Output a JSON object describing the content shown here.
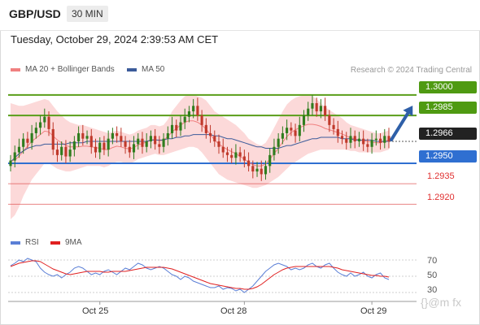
{
  "header": {
    "pair": "GBP/USD",
    "timeframe": "30 MIN",
    "datetime": "Tuesday, October 29, 2024 2:39:53 AM CET"
  },
  "legend": {
    "ma20_label": "MA 20 + Bollinger Bands",
    "ma50_label": "MA 50",
    "ma20_color": "#f08080",
    "ma50_color": "#3b5b9a",
    "copyright": "Research © 2024 Trading Central"
  },
  "rsi_legend": {
    "rsi_label": "RSI",
    "ma9_label": "9MA",
    "rsi_color": "#5b7fd6",
    "ma9_color": "#e02020"
  },
  "levels": {
    "r2": "1.3000",
    "r1": "1.2985",
    "current": "1.2966",
    "s1": "1.2950",
    "s2": "1.2935",
    "s3": "1.2920",
    "resistance_color": "#5a9e1a",
    "support_color": "#2f6fd1",
    "minor_support_color": "#e05050",
    "current_color": "#222222"
  },
  "rsi_axis": {
    "t70": "70",
    "t50": "50",
    "t30": "30"
  },
  "x_axis": {
    "labels": [
      "Oct 25",
      "Oct 28",
      "Oct 29"
    ]
  },
  "watermark": "{}@m fx",
  "chart_data": {
    "type": "candlestick",
    "ylim": [
      1.2903,
      1.3013
    ],
    "levels": [
      1.3,
      1.2985,
      1.2966,
      1.295,
      1.2935,
      1.292
    ],
    "closes": [
      1.2952,
      1.2958,
      1.2962,
      1.2968,
      1.2965,
      1.2972,
      1.2976,
      1.298,
      1.2984,
      1.2975,
      1.296,
      1.2956,
      1.2962,
      1.2955,
      1.296,
      1.2966,
      1.2972,
      1.2968,
      1.297,
      1.2962,
      1.2958,
      1.2965,
      1.296,
      1.2968,
      1.2972,
      1.297,
      1.2966,
      1.2962,
      1.2958,
      1.2964,
      1.2968,
      1.2962,
      1.2966,
      1.297,
      1.2964,
      1.2962,
      1.2968,
      1.2972,
      1.2978,
      1.2974,
      1.298,
      1.2984,
      1.2988,
      1.2992,
      1.2985,
      1.2978,
      1.2972,
      1.297,
      1.2966,
      1.2962,
      1.2958,
      1.2956,
      1.2954,
      1.2958,
      1.2955,
      1.2952,
      1.2948,
      1.2944,
      1.2946,
      1.2942,
      1.2948,
      1.2956,
      1.2962,
      1.2968,
      1.2972,
      1.2976,
      1.2974,
      1.297,
      1.2978,
      1.2985,
      1.299,
      1.2994,
      1.2988,
      1.2992,
      1.2985,
      1.2978,
      1.2975,
      1.297,
      1.2968,
      1.2965,
      1.297,
      1.2966,
      1.2968,
      1.2964,
      1.2962,
      1.2967,
      1.2968,
      1.2965,
      1.297,
      1.2966
    ],
    "bb_upper": [
      1.2994,
      1.2993,
      1.2992,
      1.2992,
      1.2993,
      1.2994,
      1.2995,
      1.2996,
      1.2997,
      1.2996,
      1.2992,
      1.2988,
      1.2985,
      1.2982,
      1.298,
      1.2979,
      1.2978,
      1.2978,
      1.2977,
      1.2976,
      1.2975,
      1.2974,
      1.2973,
      1.2972,
      1.2973,
      1.2974,
      1.2973,
      1.2972,
      1.2971,
      1.2972,
      1.2974,
      1.2975,
      1.2976,
      1.2978,
      1.2978,
      1.2977,
      1.2978,
      1.2982,
      1.2988,
      1.2992,
      1.2996,
      1.2999,
      1.3,
      1.3,
      1.2999,
      1.2998,
      1.2996,
      1.2992,
      1.2988,
      1.2986,
      1.2984,
      1.2982,
      1.298,
      1.2978,
      1.2975,
      1.2972,
      1.2968,
      1.2966,
      1.2964,
      1.2963,
      1.2965,
      1.297,
      1.2976,
      1.2982,
      1.2988,
      1.2993,
      1.2996,
      1.2998,
      1.2999,
      1.3,
      1.3,
      1.2999,
      1.2997,
      1.2994,
      1.2991,
      1.2989,
      1.2987,
      1.2985,
      1.2983,
      1.298,
      1.2978,
      1.2977,
      1.2976,
      1.2975,
      1.2974,
      1.2973,
      1.2972,
      1.2972,
      1.2973,
      1.2974
    ],
    "bb_lower": [
      1.2909,
      1.2912,
      1.2918,
      1.2926,
      1.2932,
      1.2938,
      1.2942,
      1.2946,
      1.295,
      1.295,
      1.2948,
      1.2946,
      1.2945,
      1.2944,
      1.2944,
      1.2945,
      1.2946,
      1.2947,
      1.2948,
      1.2948,
      1.2948,
      1.2948,
      1.2947,
      1.2948,
      1.295,
      1.2951,
      1.2951,
      1.295,
      1.295,
      1.2951,
      1.2953,
      1.2954,
      1.2955,
      1.2956,
      1.2957,
      1.2956,
      1.2956,
      1.2957,
      1.2958,
      1.2959,
      1.296,
      1.2961,
      1.2962,
      1.2962,
      1.2961,
      1.2958,
      1.2954,
      1.295,
      1.2946,
      1.2942,
      1.294,
      1.2938,
      1.2937,
      1.2936,
      1.2935,
      1.2934,
      1.2933,
      1.2932,
      1.2932,
      1.2933,
      1.2934,
      1.2936,
      1.2938,
      1.294,
      1.2943,
      1.2946,
      1.2949,
      1.2951,
      1.2953,
      1.2955,
      1.2957,
      1.2958,
      1.2959,
      1.296,
      1.296,
      1.296,
      1.296,
      1.296,
      1.296,
      1.296,
      1.2959,
      1.2959,
      1.2958,
      1.2958,
      1.2958,
      1.2958,
      1.2958,
      1.2958,
      1.2959,
      1.296
    ],
    "ma50": [
      1.2951,
      1.2954,
      1.2957,
      1.2959,
      1.2961,
      1.2962,
      1.2963,
      1.2963,
      1.2964,
      1.2964,
      1.2964,
      1.2964,
      1.2964,
      1.2964,
      1.2965,
      1.2965,
      1.2965,
      1.2965,
      1.2966,
      1.2966,
      1.2966,
      1.2966,
      1.2966,
      1.2966,
      1.2966,
      1.2966,
      1.2966,
      1.2966,
      1.2966,
      1.2966,
      1.2966,
      1.2966,
      1.2966,
      1.2967,
      1.2967,
      1.2967,
      1.2967,
      1.2968,
      1.2968,
      1.2969,
      1.2969,
      1.297,
      1.297,
      1.2971,
      1.2971,
      1.2971,
      1.2971,
      1.2971,
      1.297,
      1.297,
      1.2969,
      1.2968,
      1.2968,
      1.2967,
      1.2966,
      1.2965,
      1.2964,
      1.2963,
      1.2962,
      1.2962,
      1.2961,
      1.2961,
      1.2961,
      1.2961,
      1.2962,
      1.2963,
      1.2963,
      1.2964,
      1.2965,
      1.2966,
      1.2967,
      1.2968,
      1.2968,
      1.2969,
      1.2969,
      1.2969,
      1.2969,
      1.2969,
      1.2968,
      1.2968,
      1.2968,
      1.2967,
      1.2967,
      1.2967,
      1.2967,
      1.2967,
      1.2966,
      1.2966,
      1.2966,
      1.2966
    ],
    "rsi": [
      63,
      66,
      70,
      68,
      72,
      70,
      68,
      60,
      55,
      52,
      50,
      52,
      48,
      52,
      55,
      60,
      62,
      60,
      56,
      52,
      54,
      52,
      56,
      58,
      55,
      52,
      56,
      60,
      58,
      62,
      66,
      64,
      60,
      58,
      60,
      62,
      60,
      56,
      52,
      50,
      46,
      50,
      48,
      44,
      42,
      40,
      38,
      36,
      36,
      38,
      34,
      36,
      35,
      32,
      34,
      30,
      34,
      38,
      44,
      50,
      56,
      60,
      64,
      66,
      64,
      62,
      58,
      60,
      58,
      60,
      64,
      66,
      62,
      60,
      64,
      66,
      60,
      55,
      52,
      50,
      54,
      50,
      52,
      55,
      50,
      48,
      52,
      54,
      48,
      46
    ],
    "rsi_ma9": [
      62,
      64,
      66,
      67,
      68,
      69,
      69,
      68,
      65,
      62,
      59,
      57,
      55,
      53,
      52,
      53,
      54,
      55,
      56,
      56,
      56,
      56,
      55,
      55,
      56,
      56,
      56,
      56,
      57,
      58,
      59,
      60,
      61,
      61,
      61,
      61,
      61,
      60,
      59,
      57,
      55,
      53,
      51,
      49,
      47,
      45,
      43,
      41,
      40,
      39,
      38,
      37,
      36,
      35,
      35,
      34,
      34,
      35,
      37,
      40,
      44,
      48,
      52,
      55,
      58,
      60,
      61,
      62,
      62,
      62,
      62,
      62,
      62,
      62,
      62,
      62,
      61,
      60,
      58,
      57,
      56,
      55,
      54,
      53,
      52,
      51,
      51,
      50,
      50,
      49
    ],
    "rsi_ylim": [
      20,
      80
    ],
    "rsi_ticks": [
      70,
      50,
      30
    ],
    "x_tick_labels": [
      "Oct 25",
      "Oct 28",
      "Oct 29"
    ],
    "x_tick_index": [
      21,
      55,
      85
    ]
  }
}
